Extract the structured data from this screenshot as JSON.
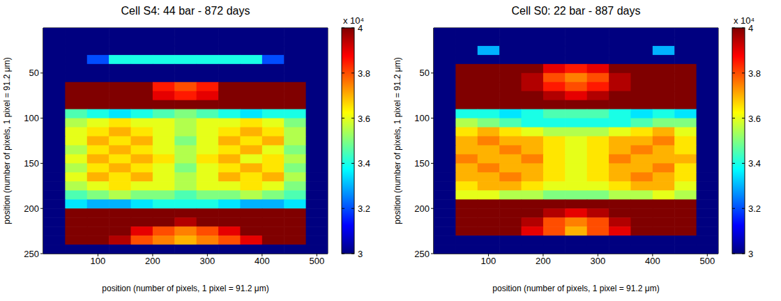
{
  "chart_data": [
    {
      "type": "heatmap",
      "title": "Cell S4: 44 bar - 872 days",
      "x_label": "position (number of pixels, 1 pixel = 91.2 μm)",
      "y_label": "position (number of pixels, 1 pixel = 91.2 μm)",
      "xlim": [
        0,
        520
      ],
      "ylim": [
        0,
        250
      ],
      "xticks": [
        100,
        200,
        300,
        400,
        500
      ],
      "yticks": [
        50,
        100,
        150,
        200,
        250
      ],
      "x": [
        20,
        60,
        100,
        140,
        180,
        220,
        260,
        300,
        340,
        380,
        420,
        460,
        500
      ],
      "y": [
        5,
        15,
        25,
        35,
        45,
        55,
        65,
        75,
        85,
        95,
        105,
        115,
        125,
        135,
        145,
        155,
        165,
        175,
        185,
        195,
        205,
        215,
        225,
        235,
        245
      ],
      "cells": [
        [
          3,
          3,
          3,
          3,
          3,
          3,
          3,
          3,
          3,
          3,
          3,
          3,
          3
        ],
        [
          3,
          3,
          3,
          3,
          3,
          3,
          3,
          3,
          3,
          3,
          3,
          3,
          3
        ],
        [
          3,
          3,
          3,
          3,
          3,
          3,
          3,
          3,
          3,
          3,
          3,
          3,
          3
        ],
        [
          3,
          3,
          3.2,
          3.4,
          3.4,
          3.4,
          3.4,
          3.4,
          3.4,
          3.4,
          3.2,
          3,
          3
        ],
        [
          3,
          3,
          3,
          3,
          3,
          3,
          3,
          3,
          3,
          3,
          3,
          3,
          3
        ],
        [
          3,
          3,
          3,
          3,
          3,
          3,
          3,
          3,
          3,
          3,
          3,
          3,
          3
        ],
        [
          3,
          4,
          4,
          4,
          4,
          3.85,
          3.8,
          3.85,
          4,
          4,
          4,
          4,
          3
        ],
        [
          3,
          4,
          4,
          4,
          4,
          3.9,
          3.85,
          3.9,
          4,
          4,
          4,
          4,
          3
        ],
        [
          3,
          4,
          4,
          4,
          4,
          4,
          4,
          4,
          4,
          4,
          4,
          4,
          3
        ],
        [
          3,
          3.45,
          3.4,
          3.35,
          3.4,
          3.45,
          3.5,
          3.45,
          3.4,
          3.35,
          3.4,
          3.4,
          3
        ],
        [
          3,
          3.55,
          3.6,
          3.65,
          3.6,
          3.6,
          3.55,
          3.6,
          3.6,
          3.65,
          3.6,
          3.5,
          3
        ],
        [
          3,
          3.6,
          3.65,
          3.7,
          3.65,
          3.6,
          3.55,
          3.6,
          3.65,
          3.7,
          3.65,
          3.55,
          3
        ],
        [
          3,
          3.6,
          3.7,
          3.65,
          3.7,
          3.6,
          3.5,
          3.6,
          3.7,
          3.65,
          3.7,
          3.55,
          3
        ],
        [
          3,
          3.55,
          3.65,
          3.7,
          3.65,
          3.6,
          3.55,
          3.6,
          3.65,
          3.7,
          3.6,
          3.5,
          3
        ],
        [
          3,
          3.6,
          3.7,
          3.65,
          3.7,
          3.65,
          3.55,
          3.65,
          3.7,
          3.6,
          3.65,
          3.55,
          3
        ],
        [
          3,
          3.55,
          3.65,
          3.7,
          3.65,
          3.6,
          3.5,
          3.6,
          3.65,
          3.7,
          3.65,
          3.5,
          3
        ],
        [
          3,
          3.6,
          3.7,
          3.65,
          3.7,
          3.6,
          3.55,
          3.6,
          3.7,
          3.65,
          3.7,
          3.55,
          3
        ],
        [
          3,
          3.55,
          3.6,
          3.65,
          3.6,
          3.6,
          3.55,
          3.6,
          3.6,
          3.65,
          3.6,
          3.5,
          3
        ],
        [
          3,
          3.45,
          3.5,
          3.55,
          3.5,
          3.5,
          3.45,
          3.5,
          3.5,
          3.55,
          3.5,
          3.45,
          3
        ],
        [
          3,
          3.35,
          3.3,
          3.3,
          3.35,
          3.4,
          3.4,
          3.4,
          3.35,
          3.3,
          3.3,
          3.35,
          3
        ],
        [
          3,
          4,
          4,
          4,
          4,
          4,
          4,
          4,
          4,
          4,
          4,
          4,
          3
        ],
        [
          3,
          4,
          4,
          4,
          4,
          4,
          3.95,
          4,
          4,
          4,
          4,
          4,
          3
        ],
        [
          3,
          4,
          4,
          4,
          3.9,
          3.8,
          3.75,
          3.8,
          3.9,
          4,
          4,
          4,
          3
        ],
        [
          3,
          4,
          4,
          3.95,
          3.8,
          3.75,
          3.7,
          3.75,
          3.8,
          3.9,
          4,
          4,
          3
        ],
        [
          3,
          3,
          3,
          3,
          3,
          3,
          3,
          3,
          3,
          3,
          3,
          3,
          3
        ]
      ],
      "colorbar": {
        "range": [
          3,
          4
        ],
        "ticks": [
          3,
          3.2,
          3.4,
          3.6,
          3.8,
          4
        ],
        "label": "x 10⁴"
      }
    },
    {
      "type": "heatmap",
      "title": "Cell S0: 22 bar - 887 days",
      "x_label": "position (number of pixels, 1 pixel = 91.2 μm)",
      "y_label": "position (number of pixels, 1 pixel = 91.2 μm)",
      "xlim": [
        0,
        520
      ],
      "ylim": [
        0,
        250
      ],
      "xticks": [
        100,
        200,
        300,
        400,
        500
      ],
      "yticks": [
        50,
        100,
        150,
        200,
        250
      ],
      "x": [
        20,
        60,
        100,
        140,
        180,
        220,
        260,
        300,
        340,
        380,
        420,
        460,
        500
      ],
      "y": [
        5,
        15,
        25,
        35,
        45,
        55,
        65,
        75,
        85,
        95,
        105,
        115,
        125,
        135,
        145,
        155,
        165,
        175,
        185,
        195,
        205,
        215,
        225,
        235,
        245
      ],
      "cells": [
        [
          3,
          3,
          3,
          3,
          3,
          3,
          3,
          3,
          3,
          3,
          3,
          3,
          3
        ],
        [
          3,
          3,
          3,
          3,
          3,
          3,
          3,
          3,
          3,
          3,
          3,
          3,
          3
        ],
        [
          3,
          3,
          3.3,
          3,
          3,
          3,
          3,
          3,
          3,
          3,
          3.3,
          3,
          3
        ],
        [
          3,
          3,
          3,
          3,
          3,
          3,
          3,
          3,
          3,
          3,
          3,
          3,
          3
        ],
        [
          3,
          4,
          4,
          4,
          4,
          3.9,
          3.85,
          3.9,
          4,
          4,
          4,
          4,
          3
        ],
        [
          3,
          4,
          4,
          4,
          3.95,
          3.8,
          3.75,
          3.8,
          3.95,
          4,
          4,
          4,
          3
        ],
        [
          3,
          4,
          4,
          4,
          3.95,
          3.85,
          3.8,
          3.85,
          3.95,
          4,
          4,
          4,
          3
        ],
        [
          3,
          4,
          4,
          4,
          4,
          3.95,
          3.9,
          3.95,
          4,
          4,
          4,
          4,
          3
        ],
        [
          3,
          4,
          4,
          4,
          4,
          4,
          4,
          4,
          4,
          4,
          4,
          4,
          3
        ],
        [
          3,
          3.4,
          3.4,
          3.35,
          3.4,
          3.45,
          3.45,
          3.45,
          3.4,
          3.35,
          3.4,
          3.35,
          3
        ],
        [
          3,
          3.55,
          3.5,
          3.45,
          3.4,
          3.4,
          3.4,
          3.4,
          3.4,
          3.45,
          3.5,
          3.5,
          3
        ],
        [
          3,
          3.65,
          3.7,
          3.65,
          3.6,
          3.55,
          3.55,
          3.55,
          3.6,
          3.65,
          3.7,
          3.6,
          3
        ],
        [
          3,
          3.7,
          3.75,
          3.7,
          3.7,
          3.65,
          3.6,
          3.65,
          3.7,
          3.7,
          3.75,
          3.65,
          3
        ],
        [
          3,
          3.7,
          3.7,
          3.75,
          3.7,
          3.65,
          3.6,
          3.65,
          3.7,
          3.75,
          3.7,
          3.65,
          3
        ],
        [
          3,
          3.75,
          3.7,
          3.7,
          3.75,
          3.65,
          3.6,
          3.65,
          3.75,
          3.7,
          3.7,
          3.7,
          3
        ],
        [
          3,
          3.7,
          3.75,
          3.7,
          3.7,
          3.65,
          3.6,
          3.65,
          3.7,
          3.7,
          3.75,
          3.65,
          3
        ],
        [
          3,
          3.7,
          3.7,
          3.75,
          3.7,
          3.65,
          3.6,
          3.65,
          3.7,
          3.75,
          3.7,
          3.65,
          3
        ],
        [
          3,
          3.65,
          3.7,
          3.7,
          3.65,
          3.6,
          3.6,
          3.6,
          3.65,
          3.7,
          3.7,
          3.6,
          3
        ],
        [
          3,
          3.6,
          3.6,
          3.55,
          3.55,
          3.5,
          3.5,
          3.5,
          3.55,
          3.55,
          3.6,
          3.55,
          3
        ],
        [
          3,
          4,
          4,
          4,
          4,
          4,
          4,
          4,
          4,
          4,
          4,
          4,
          3
        ],
        [
          3,
          4,
          4,
          4,
          4,
          3.95,
          3.9,
          3.95,
          4,
          4,
          4,
          4,
          3
        ],
        [
          3,
          4,
          4,
          4,
          3.95,
          3.8,
          3.75,
          3.8,
          3.95,
          4,
          4,
          4,
          3
        ],
        [
          3,
          4,
          4,
          4,
          3.9,
          3.8,
          3.7,
          3.8,
          3.9,
          4,
          4,
          4,
          3
        ],
        [
          3,
          3,
          3,
          3,
          3,
          3,
          3,
          3,
          3,
          3,
          3,
          3,
          3
        ],
        [
          3,
          3,
          3,
          3,
          3,
          3,
          3,
          3,
          3,
          3,
          3,
          3,
          3
        ]
      ],
      "colorbar": {
        "range": [
          3,
          4
        ],
        "ticks": [
          3,
          3.2,
          3.4,
          3.6,
          3.8,
          4
        ],
        "label": "x 10⁴"
      }
    }
  ]
}
